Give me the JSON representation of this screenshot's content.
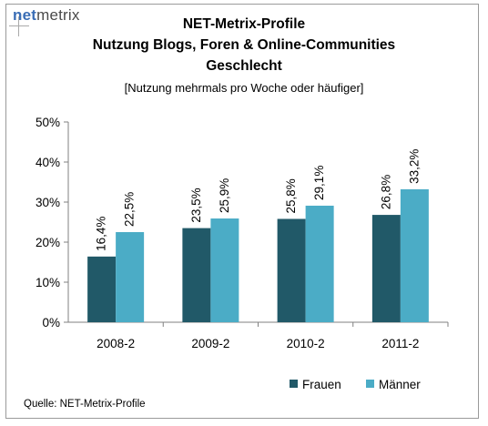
{
  "logo": {
    "part1": "net",
    "part2": "metrix"
  },
  "header": {
    "title_line1": "NET-Metrix-Profile",
    "title_line2": "Nutzung Blogs, Foren & Online-Communities",
    "title_line3": "Geschlecht",
    "subtitle": "[Nutzung mehrmals pro Woche oder häufiger]"
  },
  "source": "Quelle: NET-Metrix-Profile",
  "colors": {
    "frauen": "#215968",
    "maenner": "#4bacc6",
    "axis": "#808080"
  },
  "chart_data": {
    "type": "bar",
    "title": "NET-Metrix-Profile Nutzung Blogs, Foren & Online-Communities Geschlecht",
    "subtitle": "[Nutzung mehrmals pro Woche oder häufiger]",
    "categories": [
      "2008-2",
      "2009-2",
      "2010-2",
      "2011-2"
    ],
    "series": [
      {
        "name": "Frauen",
        "values": [
          16.4,
          23.5,
          25.8,
          26.8
        ],
        "labels": [
          "16,4%",
          "23,5%",
          "25,8%",
          "26,8%"
        ]
      },
      {
        "name": "Männer",
        "values": [
          22.5,
          25.9,
          29.1,
          33.2
        ],
        "labels": [
          "22,5%",
          "25,9%",
          "29,1%",
          "33,2%"
        ]
      }
    ],
    "yticks": [
      "0%",
      "10%",
      "20%",
      "30%",
      "40%",
      "50%"
    ],
    "ylim": [
      0,
      50
    ],
    "legend": [
      "Frauen",
      "Männer"
    ],
    "legend_position": "bottom-right"
  }
}
